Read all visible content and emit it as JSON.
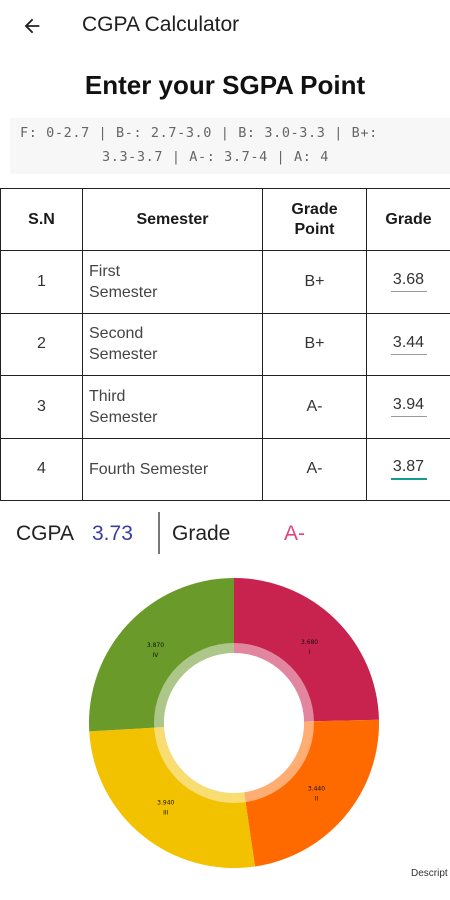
{
  "appbar": {
    "title": "CGPA Calculator",
    "back_icon": "arrow-left-icon"
  },
  "heading": "Enter your SGPA Point",
  "scale_legend": {
    "line1": "F: 0-2.7 | B-: 2.7-3.0 | B: 3.0-3.3 | B+:",
    "line2": "3.3-3.7 | A-: 3.7-4 | A: 4"
  },
  "table": {
    "headers": {
      "sn": "S.N",
      "semester": "Semester",
      "grade_point": "Grade Point",
      "grade": "Grade"
    },
    "rows": [
      {
        "sn": "1",
        "semester": "First Semester",
        "grade_point": "B+",
        "grade": "3.68"
      },
      {
        "sn": "2",
        "semester": "Second Semester",
        "grade_point": "B+",
        "grade": "3.44"
      },
      {
        "sn": "3",
        "semester": "Third Semester",
        "grade_point": "A-",
        "grade": "3.94"
      },
      {
        "sn": "4",
        "semester": "Fourth Semester",
        "grade_point": "A-",
        "grade": "3.87"
      }
    ]
  },
  "summary": {
    "cgpa_label": "CGPA",
    "cgpa_value": "3.73",
    "grade_label": "Grade",
    "grade_value": "A-"
  },
  "chart_data": {
    "type": "pie",
    "donut": true,
    "slices": [
      {
        "label": "I",
        "value": 3.68,
        "value_label": "3.680",
        "color": "#c8234f"
      },
      {
        "label": "II",
        "value": 3.44,
        "value_label": "3.440",
        "color": "#ff6a00"
      },
      {
        "label": "III",
        "value": 3.94,
        "value_label": "3.940",
        "color": "#f2c200"
      },
      {
        "label": "IV",
        "value": 3.87,
        "value_label": "3.870",
        "color": "#6a9a2a"
      }
    ],
    "description": "Descript"
  },
  "colors": {
    "cgpa_value": "#3a3e9c",
    "grade_value": "#e0457b",
    "active_underline": "#179a92"
  }
}
